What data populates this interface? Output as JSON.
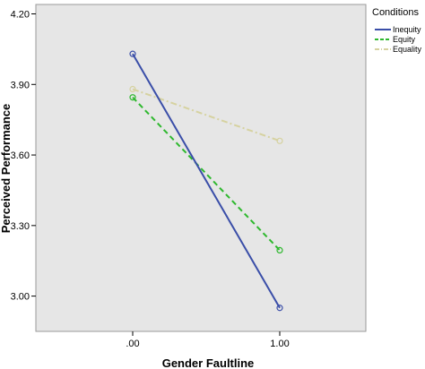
{
  "chart_data": {
    "type": "line",
    "xlabel": "Gender Faultline",
    "ylabel": "Perceived Performance",
    "x": [
      0,
      1
    ],
    "x_tick_labels": [
      ".00",
      "1.00"
    ],
    "ylim": [
      2.85,
      4.24
    ],
    "y_ticks": [
      3.0,
      3.3,
      3.6,
      3.9,
      4.2
    ],
    "y_tick_labels": [
      "3.00",
      "3.30",
      "3.60",
      "3.90",
      "4.20"
    ],
    "grid": false,
    "legend_position": "right",
    "legend_title": "Conditions",
    "plot_background": "#e6e6e6",
    "series": [
      {
        "name": "Inequity",
        "values": [
          4.03,
          2.95
        ],
        "color": "#3a4ea8",
        "dash": "solid"
      },
      {
        "name": "Equity",
        "values": [
          3.845,
          3.195
        ],
        "color": "#2eb82e",
        "dash": "dashed"
      },
      {
        "name": "Equality",
        "values": [
          3.88,
          3.66
        ],
        "color": "#d6d2a0",
        "dash": "dashdot"
      }
    ]
  }
}
